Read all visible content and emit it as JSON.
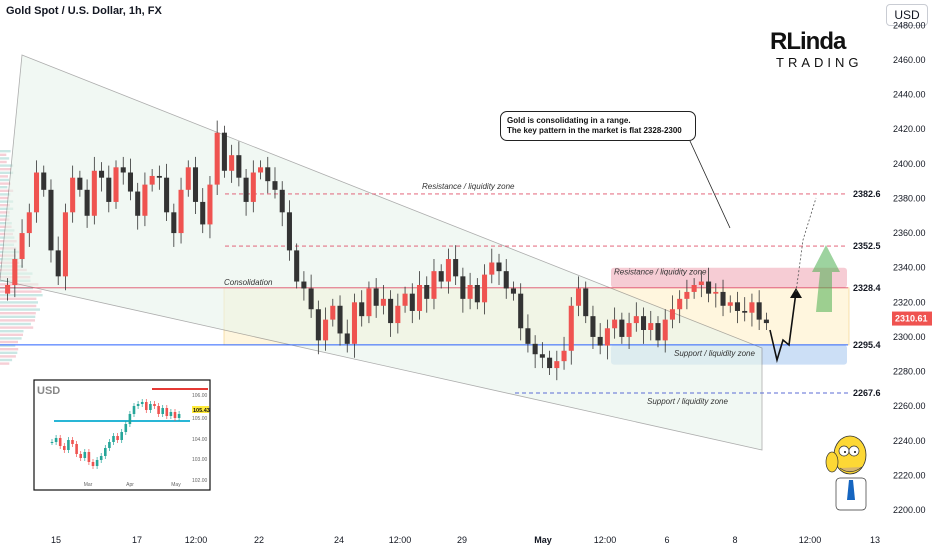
{
  "header": {
    "title": "Gold Spot / U.S. Dollar, 1h, FX",
    "currency_button": "USD"
  },
  "logo": {
    "main": "RLinda",
    "sub": "TRADING"
  },
  "annotation": {
    "line1": "Gold is consolidating in a range.",
    "line2": "The key pattern in the market is flat 2328-2300"
  },
  "chart_data": {
    "type": "candlestick",
    "yaxis": {
      "ticks": [
        2200,
        2220,
        2240,
        2260,
        2280,
        2300,
        2320,
        2340,
        2360,
        2380,
        2400,
        2420,
        2440,
        2460,
        2480
      ]
    },
    "xaxis": {
      "ticks": [
        "15",
        "17",
        "12:00",
        "22",
        "24",
        "12:00",
        "29",
        "May",
        "12:00",
        "6",
        "8",
        "12:00",
        "13"
      ]
    },
    "current_price": "2310.61",
    "levels": [
      {
        "value": 2382.6,
        "label": "2382.6",
        "color": "#e0506a",
        "style": "dashed"
      },
      {
        "value": 2352.5,
        "label": "2352.5",
        "color": "#e0506a",
        "style": "dashed"
      },
      {
        "value": 2328.4,
        "label": "2328.4",
        "color": "#e0506a",
        "style": "solid"
      },
      {
        "value": 2295.4,
        "label": "2295.4",
        "color": "#2962ff",
        "style": "solid"
      },
      {
        "value": 2267.6,
        "label": "2267.6",
        "color": "#5b6bd6",
        "style": "dashed"
      }
    ],
    "zone_labels": {
      "resistance_top": "Resistance / liquidity zone",
      "resistance_mid": "Resistance / liquidity zone",
      "consolidation": "Consolidation",
      "support_mid": "Support / liquidity zone",
      "support_low": "Support / liquidity zone"
    },
    "price_series": [
      2330,
      2345,
      2360,
      2372,
      2395,
      2385,
      2350,
      2335,
      2372,
      2392,
      2385,
      2370,
      2396,
      2392,
      2378,
      2398,
      2395,
      2384,
      2370,
      2388,
      2393,
      2392,
      2372,
      2360,
      2385,
      2398,
      2378,
      2365,
      2388,
      2418,
      2396,
      2405,
      2392,
      2378,
      2395,
      2398,
      2390,
      2385,
      2372,
      2350,
      2332,
      2328,
      2316,
      2298,
      2310,
      2318,
      2302,
      2296,
      2320,
      2312,
      2328,
      2318,
      2322,
      2308,
      2318,
      2325,
      2315,
      2330,
      2322,
      2338,
      2332,
      2345,
      2335,
      2322,
      2330,
      2320,
      2336,
      2343,
      2338,
      2328,
      2325,
      2305,
      2296,
      2290,
      2288,
      2282,
      2286,
      2292,
      2318,
      2328,
      2312,
      2300,
      2295,
      2305,
      2310,
      2300,
      2308,
      2312,
      2304,
      2308,
      2298,
      2310,
      2316,
      2322,
      2326,
      2330,
      2332,
      2325,
      2326,
      2318,
      2320,
      2315,
      2314,
      2320,
      2310,
      2308
    ],
    "inset": {
      "title": "USD",
      "yticks": [
        "106.00",
        "105.00",
        "104.00",
        "103.00",
        "102.00"
      ],
      "xticks": [
        "Mar",
        "Apr",
        "May"
      ],
      "last_value": "105.43"
    }
  },
  "colors": {
    "bull": "#26a69a",
    "bear": "#ef5350",
    "candle": "#333333",
    "resistance": "#e0506a",
    "support": "#2962ff",
    "arrow": "#4caf50"
  }
}
